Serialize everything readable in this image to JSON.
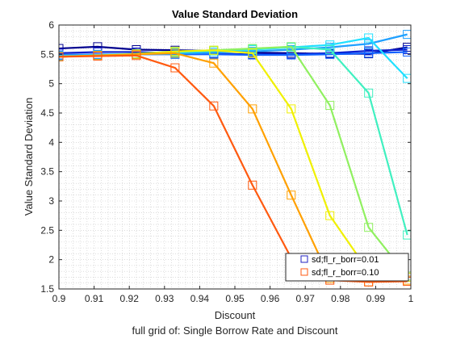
{
  "chart_data": {
    "type": "line",
    "title": "Value Standard Deviation",
    "xlabel": "Discount",
    "ylabel": "Value Standard Deviation",
    "footer": "full grid of: Single Borrow Rate and Discount",
    "xlim": [
      0.9,
      1.0
    ],
    "ylim": [
      1.5,
      6.0
    ],
    "xticks": [
      "0.9",
      "0.91",
      "0.92",
      "0.93",
      "0.94",
      "0.95",
      "0.96",
      "0.97",
      "0.98",
      "0.99",
      "1"
    ],
    "yticks": [
      "1.5",
      "2",
      "2.5",
      "3",
      "3.5",
      "4",
      "4.5",
      "5",
      "5.5",
      "6"
    ],
    "grid": "on (dotted, minor)",
    "legend_position": "bottom-right",
    "legend": [
      {
        "label": "sd;fl_r_borr=0.01",
        "color": "#2020c0"
      },
      {
        "label": "sd;fl_r_borr=0.10",
        "color": "#ff5a10"
      }
    ],
    "x": [
      0.9,
      0.911,
      0.922,
      0.933,
      0.944,
      0.955,
      0.966,
      0.977,
      0.988,
      0.999
    ],
    "series": [
      {
        "color": "#00008f",
        "values": [
          5.6,
          5.63,
          5.58,
          5.57,
          5.56,
          5.53,
          5.52,
          5.51,
          5.51,
          5.62
        ]
      },
      {
        "color": "#0a1fd0",
        "values": [
          5.52,
          5.54,
          5.54,
          5.52,
          5.51,
          5.5,
          5.5,
          5.52,
          5.56,
          5.58
        ]
      },
      {
        "color": "#1060ff",
        "values": [
          5.49,
          5.5,
          5.5,
          5.5,
          5.5,
          5.49,
          5.49,
          5.5,
          5.52,
          5.54
        ]
      },
      {
        "color": "#1fa0ff",
        "values": [
          5.48,
          5.49,
          5.5,
          5.51,
          5.53,
          5.55,
          5.58,
          5.62,
          5.68,
          5.84
        ]
      },
      {
        "color": "#20e0ff",
        "values": [
          5.47,
          5.49,
          5.51,
          5.53,
          5.56,
          5.58,
          5.62,
          5.66,
          5.78,
          5.09
        ]
      },
      {
        "color": "#40f0c0",
        "values": [
          5.46,
          5.48,
          5.5,
          5.54,
          5.56,
          5.59,
          5.63,
          5.58,
          4.84,
          2.42
        ]
      },
      {
        "color": "#90f060",
        "values": [
          5.46,
          5.48,
          5.51,
          5.55,
          5.57,
          5.6,
          5.63,
          4.63,
          2.55,
          1.72
        ]
      },
      {
        "color": "#f0f000",
        "values": [
          5.46,
          5.48,
          5.5,
          5.55,
          5.57,
          5.52,
          4.57,
          2.75,
          1.8,
          1.7
        ]
      },
      {
        "color": "#ffa000",
        "values": [
          5.46,
          5.48,
          5.5,
          5.52,
          5.35,
          4.57,
          3.1,
          1.68,
          1.62,
          1.65
        ]
      },
      {
        "color": "#ff5a10",
        "values": [
          5.46,
          5.47,
          5.48,
          5.27,
          4.62,
          3.27,
          2.03,
          1.65,
          1.62,
          1.63
        ]
      }
    ]
  }
}
